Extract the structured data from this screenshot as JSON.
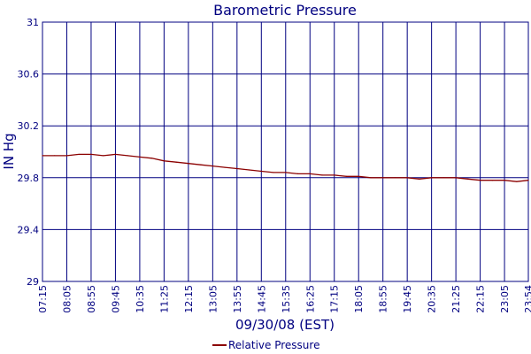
{
  "chart_data": {
    "type": "line",
    "title": "Barometric Pressure",
    "xlabel": "09/30/08 (EST)",
    "ylabel": "IN Hg",
    "ylim": [
      29,
      31
    ],
    "y_ticks": [
      "29",
      "29.4",
      "29.8",
      "30.2",
      "30.6",
      "31"
    ],
    "x_ticks": [
      "07:15",
      "08:05",
      "08:55",
      "09:45",
      "10:35",
      "11:25",
      "12:15",
      "13:05",
      "13:55",
      "14:45",
      "15:35",
      "16:25",
      "17:15",
      "18:05",
      "18:55",
      "19:45",
      "20:35",
      "21:25",
      "22:15",
      "23:05",
      "23:54"
    ],
    "grid": true,
    "legend_position": "bottom",
    "colors": {
      "frame": "#000080",
      "series": "#8b0000",
      "background": "#ffffff"
    },
    "series": [
      {
        "name": "Relative Pressure",
        "x": [
          "07:15",
          "07:40",
          "08:05",
          "08:30",
          "08:55",
          "09:20",
          "09:45",
          "10:10",
          "10:35",
          "11:00",
          "11:25",
          "11:50",
          "12:15",
          "12:40",
          "13:05",
          "13:30",
          "13:55",
          "14:20",
          "14:45",
          "15:10",
          "15:35",
          "16:00",
          "16:25",
          "16:50",
          "17:15",
          "17:40",
          "18:05",
          "18:30",
          "18:55",
          "19:20",
          "19:45",
          "20:10",
          "20:35",
          "21:00",
          "21:25",
          "21:50",
          "22:15",
          "22:40",
          "23:05",
          "23:30",
          "23:54"
        ],
        "values": [
          29.97,
          29.97,
          29.97,
          29.98,
          29.98,
          29.97,
          29.98,
          29.97,
          29.96,
          29.95,
          29.93,
          29.92,
          29.91,
          29.9,
          29.89,
          29.88,
          29.87,
          29.86,
          29.85,
          29.84,
          29.84,
          29.83,
          29.83,
          29.82,
          29.82,
          29.81,
          29.81,
          29.8,
          29.8,
          29.8,
          29.8,
          29.79,
          29.8,
          29.8,
          29.8,
          29.79,
          29.78,
          29.78,
          29.78,
          29.77,
          29.78
        ]
      }
    ]
  }
}
